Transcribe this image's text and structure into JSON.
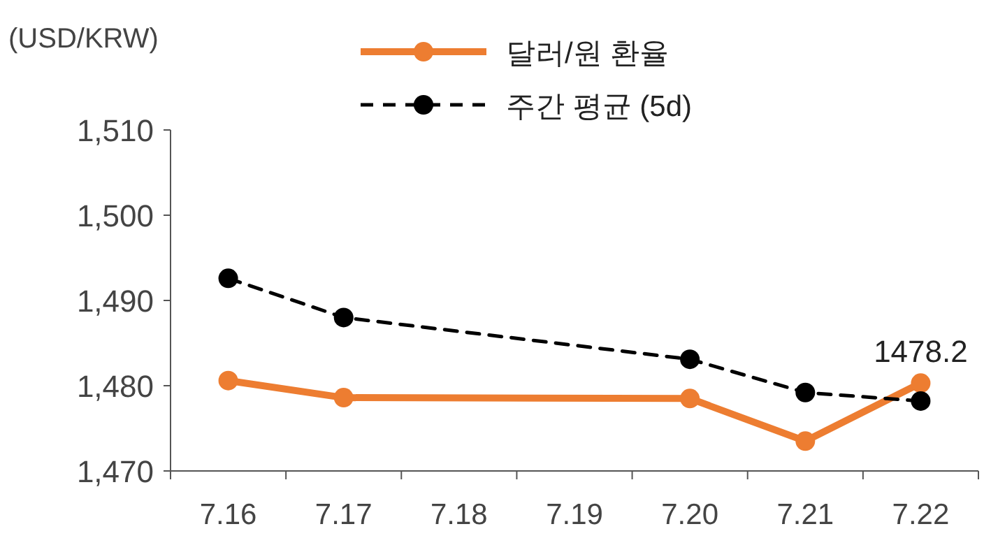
{
  "chart_data": {
    "type": "line",
    "ylabel": "(USD/KRW)",
    "categories": [
      "7.16",
      "7.17",
      "7.18",
      "7.19",
      "7.20",
      "7.21",
      "7.22"
    ],
    "series": [
      {
        "name": "달러/원 환율",
        "color": "#ed7d31",
        "values": [
          1480.6,
          1478.6,
          null,
          null,
          1478.5,
          1473.5,
          1480.3
        ],
        "line_style": "solid"
      },
      {
        "name": "주간 평균 (5d)",
        "color": "#000000",
        "values": [
          1492.6,
          1488.0,
          null,
          null,
          1483.1,
          1479.2,
          1478.2
        ],
        "line_style": "dashed"
      }
    ],
    "ylim": [
      1470,
      1510
    ],
    "yticks": [
      {
        "value": 1470,
        "label": "1,470"
      },
      {
        "value": 1480,
        "label": "1,480"
      },
      {
        "value": 1490,
        "label": "1,490"
      },
      {
        "value": 1500,
        "label": "1,500"
      },
      {
        "value": 1510,
        "label": "1,510"
      }
    ],
    "marker": "circle",
    "legend": "top",
    "grid": false,
    "annotations": [
      {
        "text": "1478.2",
        "x": "7.22",
        "y": 1478.2
      }
    ]
  }
}
